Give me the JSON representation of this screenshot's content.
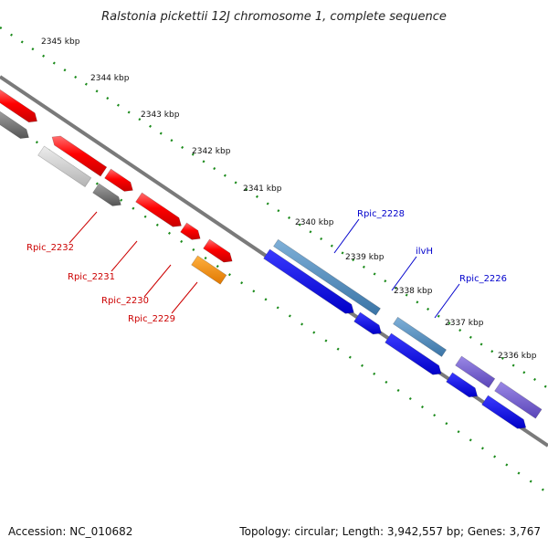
{
  "header": {
    "title": "Ralstonia pickettii 12J chromosome 1, complete sequence"
  },
  "scale": {
    "kbp_labels": [
      "2345 kbp",
      "2344 kbp",
      "2343 kbp",
      "2342 kbp",
      "2341 kbp",
      "2340 kbp",
      "2339 kbp",
      "2338 kbp",
      "2337 kbp",
      "2336 kbp"
    ]
  },
  "genes": {
    "left_labels": [
      "Rpic_2232",
      "Rpic_2231",
      "Rpic_2230",
      "Rpic_2229"
    ],
    "right_labels": [
      "Rpic_2228",
      "ilvH",
      "Rpic_2226"
    ]
  },
  "colors": {
    "backbone": "#7a7a7a",
    "tick": "#1a8a1a",
    "gene_red": "#ff0000",
    "gene_red_light": "#ff6a6a",
    "gene_gray": "#6e6e6e",
    "gene_gray_light": "#cfcfcf",
    "gene_orange": "#ff8c00",
    "gene_blue": "#0000ee",
    "gene_steel": "#4a86b4",
    "gene_purple": "#6a55c8",
    "label_red": "#cc0000",
    "label_blue": "#0000cc"
  },
  "footer": {
    "accession": "Accession: NC_010682",
    "summary": "Topology: circular; Length: 3,942,557 bp; Genes: 3,767"
  }
}
